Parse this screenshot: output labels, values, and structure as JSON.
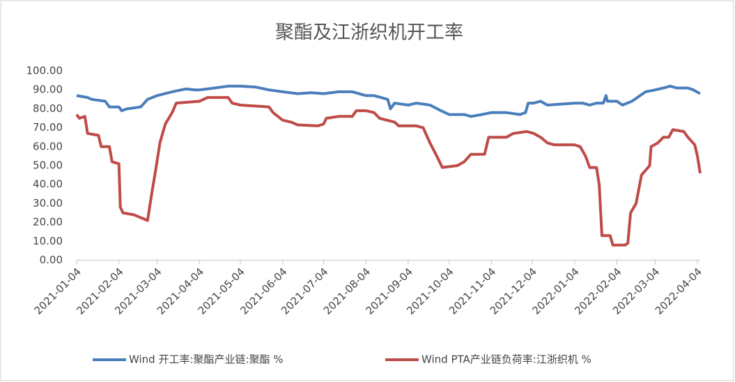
{
  "chart_data": {
    "type": "line",
    "title": "聚酯及江浙织机开工率",
    "xlim": [
      "2021-01-04",
      "2022-04-06"
    ],
    "xticks": [
      "2021-01-04",
      "2021-02-04",
      "2021-03-04",
      "2021-04-04",
      "2021-05-04",
      "2021-06-04",
      "2021-07-04",
      "2021-08-04",
      "2021-09-04",
      "2021-10-04",
      "2021-11-04",
      "2021-12-04",
      "2022-01-04",
      "2022-02-04",
      "2022-03-04",
      "2022-04-04"
    ],
    "ylim": [
      0,
      100
    ],
    "yticks": [
      {
        "value": 0,
        "label": "0.00"
      },
      {
        "value": 10,
        "label": "10.00"
      },
      {
        "value": 20,
        "label": "20.00"
      },
      {
        "value": 30,
        "label": "30.00"
      },
      {
        "value": 40,
        "label": "40.00"
      },
      {
        "value": 50,
        "label": "50.00"
      },
      {
        "value": 60,
        "label": "60.00"
      },
      {
        "value": 70,
        "label": "70.00"
      },
      {
        "value": 80,
        "label": "80.00"
      },
      {
        "value": 90,
        "label": "90.00"
      },
      {
        "value": 100,
        "label": "100.00"
      }
    ],
    "grid": false,
    "legend": "bottom",
    "series": [
      {
        "name": "Wind 开工率:聚酯产业链:聚酯 %",
        "color": "#4a7ebb",
        "x": [
          "2021-01-04",
          "2021-01-12",
          "2021-01-15",
          "2021-01-25",
          "2021-01-28",
          "2021-02-04",
          "2021-02-06",
          "2021-02-10",
          "2021-02-20",
          "2021-02-25",
          "2021-03-04",
          "2021-03-15",
          "2021-03-25",
          "2021-04-01",
          "2021-04-04",
          "2021-04-15",
          "2021-04-25",
          "2021-05-04",
          "2021-05-15",
          "2021-05-25",
          "2021-06-04",
          "2021-06-15",
          "2021-06-25",
          "2021-07-04",
          "2021-07-15",
          "2021-07-25",
          "2021-08-04",
          "2021-08-10",
          "2021-08-15",
          "2021-08-20",
          "2021-08-22",
          "2021-08-25",
          "2021-09-04",
          "2021-09-10",
          "2021-09-20",
          "2021-09-28",
          "2021-10-04",
          "2021-10-15",
          "2021-10-20",
          "2021-10-28",
          "2021-11-04",
          "2021-11-15",
          "2021-11-25",
          "2021-11-29",
          "2021-12-01",
          "2021-12-05",
          "2021-12-10",
          "2021-12-15",
          "2021-12-25",
          "2022-01-04",
          "2022-01-10",
          "2022-01-15",
          "2022-01-20",
          "2022-01-25",
          "2022-01-27",
          "2022-01-28",
          "2022-02-04",
          "2022-02-08",
          "2022-02-15",
          "2022-02-25",
          "2022-03-04",
          "2022-03-10",
          "2022-03-15",
          "2022-03-20",
          "2022-03-28",
          "2022-04-01",
          "2022-04-06"
        ],
        "values": [
          87,
          86,
          85,
          84,
          81,
          81,
          79,
          80,
          81,
          85,
          87,
          89,
          90.5,
          90,
          90,
          91,
          92,
          92,
          91.5,
          90,
          89,
          88,
          88.5,
          88,
          89,
          89,
          87,
          87,
          86,
          85,
          80,
          83,
          82,
          83,
          82,
          79,
          77,
          77,
          76,
          77,
          78,
          78,
          77,
          78,
          83,
          83,
          84,
          82,
          82.5,
          83,
          83,
          82,
          83,
          83,
          87,
          84,
          84,
          82,
          84,
          89,
          90,
          91,
          92,
          91,
          91,
          90,
          88
        ]
      },
      {
        "name": "Wind PTA产业链负荷率:江浙织机 %",
        "color": "#be4b48",
        "x": [
          "2021-01-04",
          "2021-01-06",
          "2021-01-10",
          "2021-01-12",
          "2021-01-20",
          "2021-01-22",
          "2021-01-28",
          "2021-01-30",
          "2021-02-04",
          "2021-02-05",
          "2021-02-07",
          "2021-02-15",
          "2021-02-25",
          "2021-02-28",
          "2021-03-03",
          "2021-03-06",
          "2021-03-10",
          "2021-03-15",
          "2021-03-18",
          "2021-04-04",
          "2021-04-10",
          "2021-04-25",
          "2021-04-28",
          "2021-05-04",
          "2021-05-25",
          "2021-05-28",
          "2021-06-04",
          "2021-06-10",
          "2021-06-15",
          "2021-06-30",
          "2021-07-04",
          "2021-07-06",
          "2021-07-15",
          "2021-07-25",
          "2021-07-28",
          "2021-08-04",
          "2021-08-10",
          "2021-08-14",
          "2021-08-25",
          "2021-08-28",
          "2021-09-10",
          "2021-09-15",
          "2021-09-20",
          "2021-09-25",
          "2021-09-29",
          "2021-10-10",
          "2021-10-15",
          "2021-10-20",
          "2021-10-30",
          "2021-11-02",
          "2021-11-15",
          "2021-11-20",
          "2021-11-30",
          "2021-12-05",
          "2021-12-10",
          "2021-12-15",
          "2021-12-20",
          "2022-01-04",
          "2022-01-08",
          "2022-01-12",
          "2022-01-15",
          "2022-01-20",
          "2022-01-22",
          "2022-01-24",
          "2022-01-30",
          "2022-02-01",
          "2022-02-10",
          "2022-02-12",
          "2022-02-14",
          "2022-02-18",
          "2022-02-22",
          "2022-02-28",
          "2022-03-01",
          "2022-03-06",
          "2022-03-10",
          "2022-03-14",
          "2022-03-17",
          "2022-03-25",
          "2022-03-28",
          "2022-04-02",
          "2022-04-04",
          "2022-04-06"
        ],
        "values": [
          77,
          75,
          76,
          67,
          66,
          60,
          60,
          52,
          51,
          28,
          25,
          24,
          21,
          35,
          48,
          62,
          72,
          78,
          83,
          84,
          86,
          86,
          83,
          82,
          81,
          78,
          74,
          73,
          71.5,
          71,
          72,
          75,
          76,
          76,
          79,
          79,
          78,
          75,
          73,
          71,
          71,
          70,
          62,
          55,
          49,
          50,
          52,
          56,
          56,
          65,
          65,
          67,
          68,
          67,
          65,
          62,
          61,
          61,
          60,
          55,
          49,
          49,
          40,
          13,
          13,
          8,
          8,
          9,
          25,
          30,
          45,
          50,
          60,
          62,
          65,
          65,
          69,
          68,
          65,
          61,
          55,
          46
        ]
      }
    ]
  }
}
